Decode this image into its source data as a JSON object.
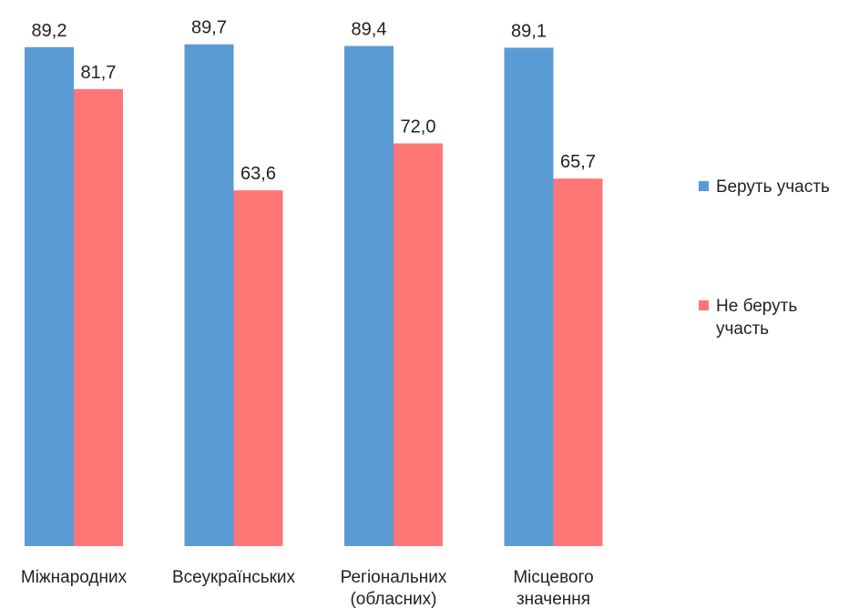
{
  "chart_data": {
    "type": "bar",
    "categories": [
      [
        "Міжнародних"
      ],
      [
        "Всеукраїнських"
      ],
      [
        "Регіональних",
        "(обласних)"
      ],
      [
        "Місцевого",
        "значення"
      ]
    ],
    "series": [
      {
        "name": [
          "Беруть участь"
        ],
        "color": "#5B9BD5",
        "values": [
          89.2,
          89.7,
          89.4,
          89.1
        ],
        "labels": [
          "89,2",
          "89,7",
          "89,4",
          "89,1"
        ]
      },
      {
        "name": [
          "Не беруть",
          "участь"
        ],
        "color": "#FF7676",
        "values": [
          81.7,
          63.6,
          72.0,
          65.7
        ],
        "labels": [
          "81,7",
          "63,6",
          "72,0",
          "65,7"
        ]
      }
    ],
    "ylim": [
      0,
      100
    ],
    "grid": false,
    "legend": "right",
    "title": "",
    "xlabel": "",
    "ylabel": ""
  }
}
